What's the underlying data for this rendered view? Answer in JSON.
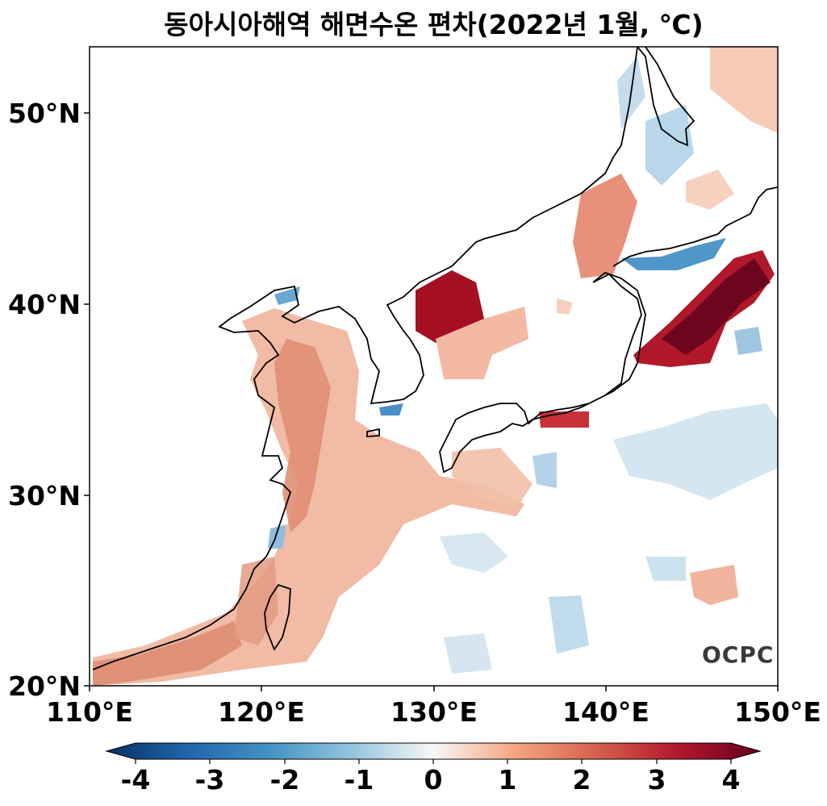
{
  "title": "동아시아해역 해면수온 편차(2022년 1월, ℃)",
  "y_axis_ticks": [
    "50°N",
    "40°N",
    "30°N",
    "20°N"
  ],
  "x_axis_ticks": [
    "110°E",
    "120°E",
    "130°E",
    "140°E",
    "150°E"
  ],
  "colorbar_ticks": [
    "-4",
    "-3",
    "-2",
    "-1",
    "0",
    "1",
    "2",
    "3",
    "4"
  ],
  "logo_text": "OCPC",
  "map_extent": {
    "lon_min": 110,
    "lon_max": 150,
    "lat_min": 20,
    "lat_max": 53.5
  },
  "colormap": {
    "name": "RdBu_r",
    "min": -4,
    "max": 4,
    "deep_blue": "#053061",
    "deep_red": "#67001f"
  },
  "chart_data": {
    "type": "heatmap",
    "title": "동아시아해역 해면수온 편차(2022년 1월, ℃)",
    "x_ticks": [
      "110°E",
      "120°E",
      "130°E",
      "140°E",
      "150°E"
    ],
    "y_ticks": [
      "50°N",
      "40°N",
      "30°N",
      "20°N"
    ],
    "xlim": [
      110,
      150
    ],
    "ylim": [
      20,
      53.5
    ],
    "colorbar_range": [
      -4,
      4
    ],
    "units": "℃"
  }
}
